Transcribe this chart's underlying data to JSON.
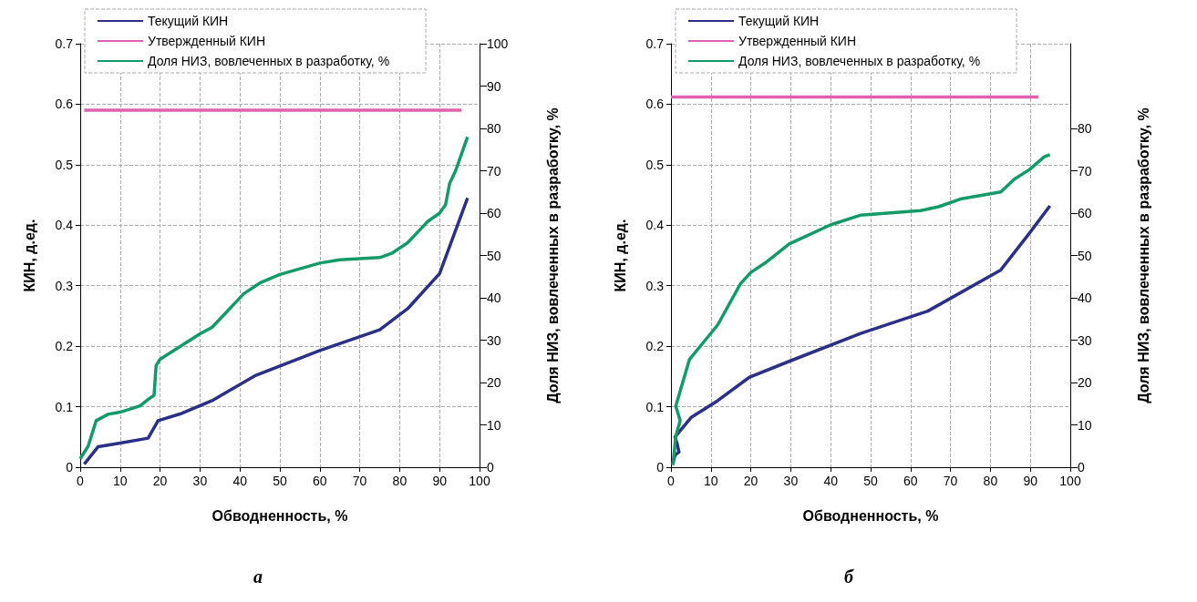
{
  "chart_data": [
    {
      "type": "line",
      "xlabel": "Обводненность, %",
      "ylabel": "КИН, д.ед.",
      "y2label": "Доля НИЗ, вовлеченных в разработку, %",
      "xlim": [
        0,
        100
      ],
      "xticks": [
        0,
        10,
        20,
        30,
        40,
        50,
        60,
        70,
        80,
        90,
        100
      ],
      "ylim": [
        0,
        0.7
      ],
      "yticks": [
        0,
        0.1,
        0.2,
        0.3,
        0.4,
        0.5,
        0.6,
        0.7
      ],
      "y2lim": [
        0,
        100
      ],
      "y2ticks": [
        0,
        10,
        20,
        30,
        40,
        50,
        60,
        70,
        80,
        90,
        100
      ],
      "grid": true,
      "legend": "top",
      "annotations": [
        "а"
      ],
      "series": [
        {
          "name": "Текущий КИН",
          "color": "#2b2f85",
          "x": [
            1,
            4.5,
            10,
            17,
            19.5,
            25,
            33,
            44,
            60,
            75,
            82,
            90,
            97
          ],
          "values": [
            0.005,
            0.034,
            0.04,
            0.048,
            0.077,
            0.088,
            0.11,
            0.152,
            0.193,
            0.227,
            0.262,
            0.32,
            0.445
          ]
        },
        {
          "name": "Утвержденный КИН",
          "color": "#e060b0",
          "x": [
            1,
            95.5
          ],
          "values": [
            0.59,
            0.59
          ]
        },
        {
          "name": "Доля НИЗ, вовлеченных в разработку, %",
          "color": "#129b68",
          "axis": "y2",
          "x": [
            0,
            2,
            3,
            4,
            7,
            10,
            15,
            17,
            18.5,
            19,
            20,
            25,
            30,
            33,
            37,
            41,
            45,
            50,
            60,
            65,
            75,
            78,
            82,
            85,
            87,
            90,
            91.5,
            92.5,
            94,
            97
          ],
          "values": [
            2,
            5,
            8,
            11,
            12.5,
            13,
            14.5,
            16,
            17,
            24,
            25.5,
            28.5,
            31.5,
            33,
            37,
            41,
            43.5,
            45.5,
            48.2,
            49,
            49.5,
            50.5,
            53,
            56,
            58,
            60,
            62,
            67,
            70,
            78
          ]
        }
      ]
    },
    {
      "type": "line",
      "xlabel": "Обводненность, %",
      "ylabel": "КИН, д.ед.",
      "y2label": "Доля НИЗ, вовлеченных в разработку, %",
      "xlim": [
        0,
        100
      ],
      "xticks": [
        0,
        10,
        20,
        30,
        40,
        50,
        60,
        70,
        80,
        90,
        100
      ],
      "ylim": [
        0,
        0.7
      ],
      "yticks": [
        0,
        0.1,
        0.2,
        0.3,
        0.4,
        0.5,
        0.6,
        0.7
      ],
      "y2lim": [
        0,
        100
      ],
      "y2ticks": [
        0,
        10,
        20,
        30,
        40,
        50,
        60,
        70,
        80
      ],
      "grid": true,
      "legend": "top",
      "annotations": [
        "б"
      ],
      "series": [
        {
          "name": "Текущий КИН",
          "color": "#2b2f85",
          "x": [
            0.4,
            1,
            2,
            1.5,
            1,
            5,
            11.7,
            19.7,
            29.6,
            47.5,
            64.3,
            82.6,
            89.8,
            94.9
          ],
          "values": [
            0.004,
            0.02,
            0.025,
            0.04,
            0.05,
            0.082,
            0.11,
            0.149,
            0.175,
            0.221,
            0.258,
            0.326,
            0.387,
            0.432
          ]
        },
        {
          "name": "Утвержденный КИН",
          "color": "#e060b0",
          "x": [
            0,
            92
          ],
          "values": [
            0.612,
            0.612
          ]
        },
        {
          "name": "Доля НИЗ, вовлеченных в разработку, %",
          "color": "#129b68",
          "axis": "y2",
          "x": [
            0.5,
            1.2,
            2.3,
            1.2,
            4.6,
            11.7,
            17.4,
            20,
            24,
            29.6,
            39.9,
            47.4,
            62.5,
            67,
            72.8,
            82.6,
            86,
            89.8,
            93.5,
            94.9
          ],
          "values": [
            0.6,
            7.3,
            11,
            14.4,
            25.4,
            33.6,
            43.3,
            46,
            48.5,
            52.7,
            57.2,
            59.5,
            60.6,
            61.5,
            63.4,
            65,
            68,
            70.3,
            73.3,
            73.8
          ]
        }
      ]
    }
  ]
}
